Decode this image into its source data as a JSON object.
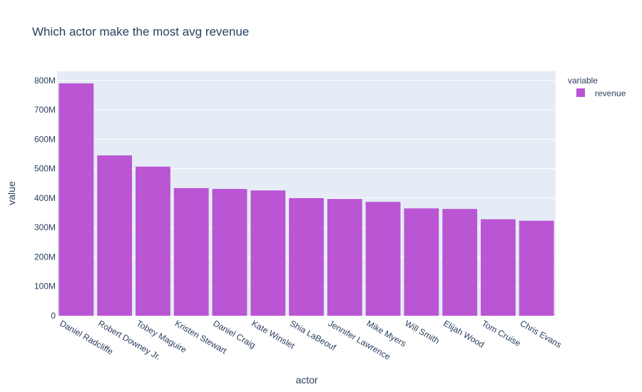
{
  "chart_data": {
    "type": "bar",
    "title": "Which actor make the most avg revenue",
    "xlabel": "actor",
    "ylabel": "value",
    "categories": [
      "Daniel Radcliffe",
      "Robert Downey Jr.",
      "Tobey Maguire",
      "Kristen Stewart",
      "Daniel Craig",
      "Kate Winslet",
      "Shia LaBeouf",
      "Jennifer Lawrence",
      "Mike Myers",
      "Will Smith",
      "Elijah Wood",
      "Tom Cruise",
      "Chris Evans"
    ],
    "series": [
      {
        "name": "revenue",
        "color": "#ba55d3",
        "values": [
          790000000,
          545000000,
          507000000,
          434000000,
          431000000,
          426000000,
          400000000,
          397000000,
          387000000,
          365000000,
          363000000,
          328000000,
          323000000
        ]
      }
    ],
    "ylim": [
      0,
      831000000
    ],
    "yticks": [
      0,
      100000000,
      200000000,
      300000000,
      400000000,
      500000000,
      600000000,
      700000000,
      800000000
    ],
    "ytick_labels": [
      "0",
      "100M",
      "200M",
      "300M",
      "400M",
      "500M",
      "600M",
      "700M",
      "800M"
    ],
    "legend": {
      "title": "variable",
      "position": "top-right"
    },
    "grid": true,
    "plot_bgcolor": "#e5ecf6"
  }
}
